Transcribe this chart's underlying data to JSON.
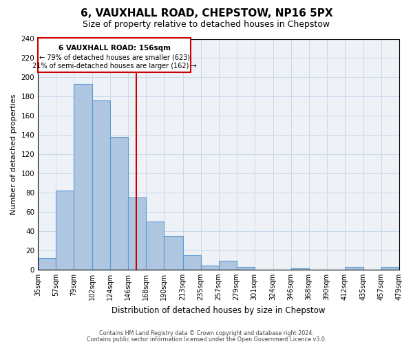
{
  "title": "6, VAUXHALL ROAD, CHEPSTOW, NP16 5PX",
  "subtitle": "Size of property relative to detached houses in Chepstow",
  "xlabel": "Distribution of detached houses by size in Chepstow",
  "ylabel": "Number of detached properties",
  "bar_values": [
    12,
    82,
    193,
    176,
    138,
    75,
    50,
    35,
    15,
    4,
    9,
    3,
    0,
    0,
    1,
    0,
    0,
    3,
    0,
    3
  ],
  "bin_edges": [
    35,
    57,
    79,
    102,
    124,
    146,
    168,
    190,
    213,
    235,
    257,
    279,
    301,
    324,
    346,
    368,
    390,
    412,
    435,
    457,
    479
  ],
  "tick_labels": [
    "35sqm",
    "57sqm",
    "79sqm",
    "102sqm",
    "124sqm",
    "146sqm",
    "168sqm",
    "190sqm",
    "213sqm",
    "235sqm",
    "257sqm",
    "279sqm",
    "301sqm",
    "324sqm",
    "346sqm",
    "368sqm",
    "390sqm",
    "412sqm",
    "435sqm",
    "457sqm",
    "479sqm"
  ],
  "bar_color": "#aec6df",
  "bar_edge_color": "#5b9bd5",
  "vline_x": 156,
  "vline_color": "#cc0000",
  "ylim": [
    0,
    240
  ],
  "yticks": [
    0,
    20,
    40,
    60,
    80,
    100,
    120,
    140,
    160,
    180,
    200,
    220,
    240
  ],
  "annotation_title": "6 VAUXHALL ROAD: 156sqm",
  "annotation_line1": "← 79% of detached houses are smaller (623)",
  "annotation_line2": "21% of semi-detached houses are larger (162) →",
  "annotation_box_color": "#cc0000",
  "footer1": "Contains HM Land Registry data © Crown copyright and database right 2024.",
  "footer2": "Contains public sector information licensed under the Open Government Licence v3.0.",
  "background_color": "#eef2f7",
  "grid_color": "#c8d8eb"
}
